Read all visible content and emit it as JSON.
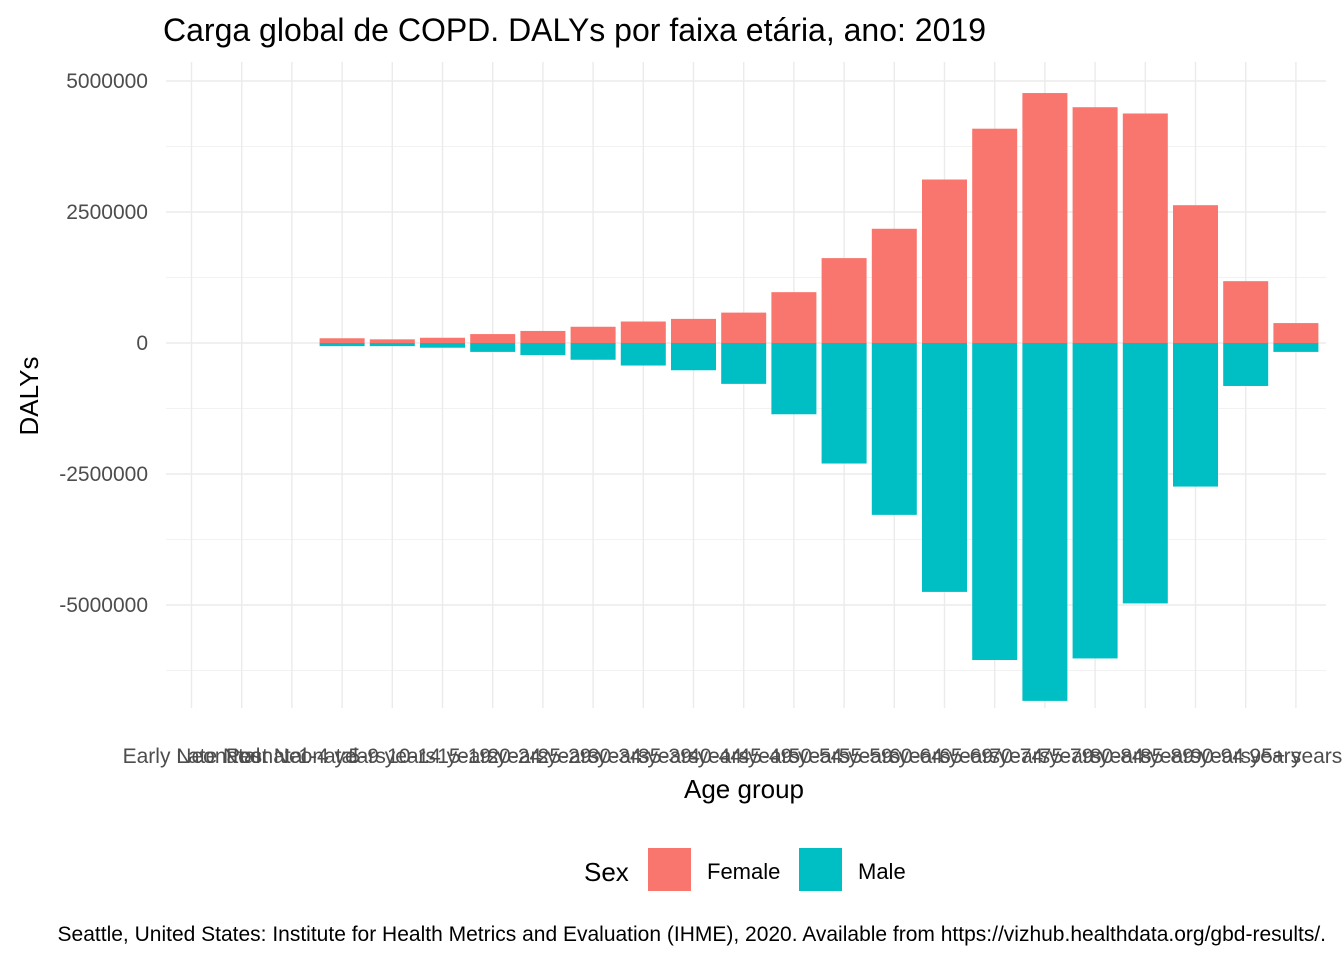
{
  "chart_data": {
    "type": "bar",
    "title": "Carga global de COPD. DALYs por faixa etária, ano: 2019",
    "xlabel": "Age group",
    "ylabel": "DALYs",
    "caption": "Seattle, United States: Institute for Health Metrics and Evaluation (IHME), 2020. Available from https://vizhub.healthdata.org/gbd-results/.",
    "categories": [
      "Early Neonatal",
      "Late Neonatal",
      "Post Neonatal",
      "1-4 years",
      "5-9 years",
      "10-14 years",
      "15-19 years",
      "20-24 years",
      "25-29 years",
      "30-34 years",
      "35-39 years",
      "40-44 years",
      "45-49 years",
      "50-54 years",
      "55-59 years",
      "60-64 years",
      "65-69 years",
      "70-74 years",
      "75-79 years",
      "80-84 years",
      "85-89 years",
      "90-94 years",
      "95+ years"
    ],
    "series": [
      {
        "name": "Female",
        "color": "#F8766D",
        "values": [
          0,
          0,
          0,
          90000,
          70000,
          100000,
          170000,
          230000,
          310000,
          410000,
          460000,
          580000,
          970000,
          1620000,
          2180000,
          3120000,
          4090000,
          4770000,
          4500000,
          4380000,
          2630000,
          1180000,
          380000
        ]
      },
      {
        "name": "Male",
        "color": "#00BFC4",
        "values": [
          0,
          0,
          0,
          -60000,
          -60000,
          -90000,
          -170000,
          -230000,
          -320000,
          -430000,
          -520000,
          -780000,
          -1360000,
          -2300000,
          -3280000,
          -4750000,
          -6050000,
          -6830000,
          -6020000,
          -4970000,
          -2740000,
          -820000,
          -170000
        ]
      }
    ],
    "stacked": true,
    "ylim": [
      -7000000,
      5200000
    ],
    "yticks": [
      -5000000,
      -2500000,
      0,
      2500000,
      5000000
    ],
    "ytick_labels": [
      "-5000000",
      "-2500000",
      "0",
      "2500000",
      "5000000"
    ],
    "grid": true,
    "legend": {
      "title": "Sex",
      "position": "bottom",
      "entries": [
        "Female",
        "Male"
      ]
    }
  }
}
